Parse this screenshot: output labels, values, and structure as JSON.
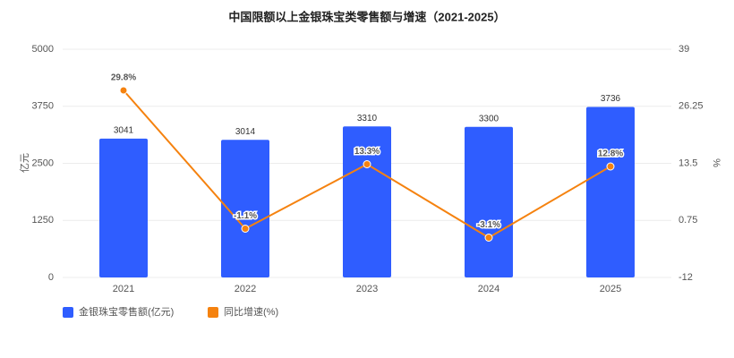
{
  "chart_data": {
    "type": "bar",
    "title": "中国限额以上金银珠宝类零售额与增速（2021-2025）",
    "categories": [
      "2021",
      "2022",
      "2023",
      "2024",
      "2025"
    ],
    "ylabel": "亿元",
    "y2label": "%",
    "ylim": [
      0,
      5000
    ],
    "yticks": [
      0,
      1250,
      2500,
      3750,
      5000
    ],
    "y2lim": [
      -12,
      39
    ],
    "y2ticks": [
      -12,
      0.75,
      13.5,
      26.25,
      39
    ],
    "grid": true,
    "legend": "bottom-left",
    "series": [
      {
        "name": "金银珠宝零售额(亿元)",
        "type": "bar",
        "color": "#2f5dff",
        "values": [
          3041,
          3014,
          3310,
          3300,
          3736
        ]
      },
      {
        "name": "同比增速(%)",
        "type": "line",
        "axis": "y2",
        "color": "#f5820f",
        "values": [
          29.8,
          -1.1,
          13.3,
          -3.1,
          12.8
        ],
        "value_labels": [
          "29.8%",
          "-1.1%",
          "13.3%",
          "-3.1%",
          "12.8%"
        ]
      }
    ]
  }
}
